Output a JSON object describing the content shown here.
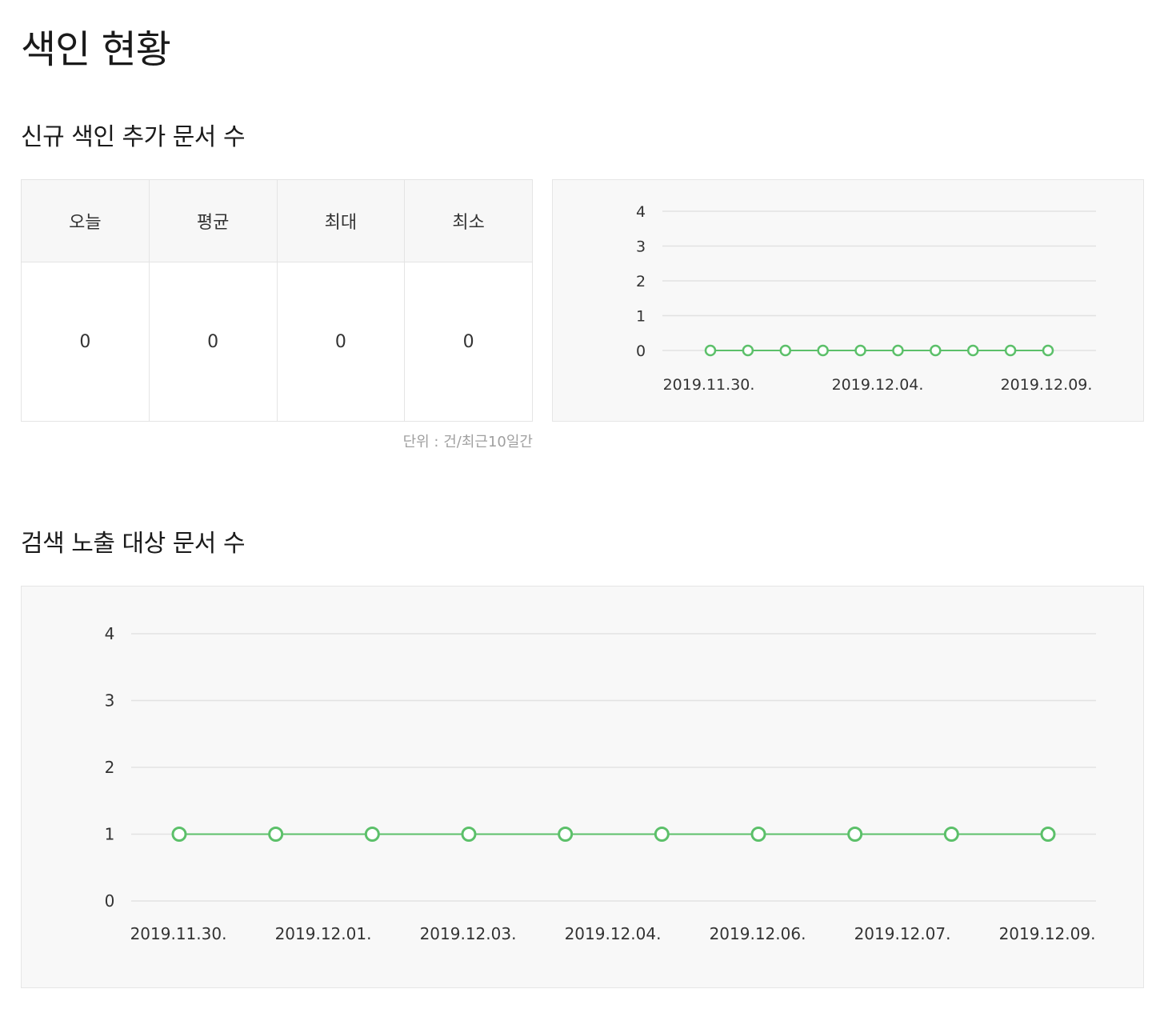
{
  "page": {
    "title": "색인 현황"
  },
  "section_new": {
    "title": "신규 색인 추가 문서 수",
    "stats": {
      "headers": [
        "오늘",
        "평균",
        "최대",
        "최소"
      ],
      "values": [
        "0",
        "0",
        "0",
        "0"
      ]
    },
    "unit_note": "단위 : 건/최근10일간"
  },
  "section_exposure": {
    "title": "검색 노출 대상 문서 수"
  },
  "colors": {
    "series": "#5cc06a",
    "grid": "#e2e2e2",
    "panel_bg": "#f8f8f8"
  },
  "chart_data": [
    {
      "type": "line",
      "ylim": [
        0,
        4
      ],
      "yticks": [
        "0",
        "1",
        "2",
        "3",
        "4"
      ],
      "x_tick_labels": [
        "2019.11.30.",
        "2019.12.04.",
        "2019.12.09."
      ],
      "series": [
        {
          "values": [
            0,
            0,
            0,
            0,
            0,
            0,
            0,
            0,
            0,
            0
          ]
        }
      ],
      "grid": true
    },
    {
      "type": "line",
      "ylim": [
        0,
        4
      ],
      "yticks": [
        "0",
        "1",
        "2",
        "3",
        "4"
      ],
      "x_tick_labels": [
        "2019.11.30.",
        "2019.12.01.",
        "2019.12.03.",
        "2019.12.04.",
        "2019.12.06.",
        "2019.12.07.",
        "2019.12.09."
      ],
      "series": [
        {
          "values": [
            1,
            1,
            1,
            1,
            1,
            1,
            1,
            1,
            1,
            1
          ]
        }
      ],
      "grid": true
    }
  ]
}
